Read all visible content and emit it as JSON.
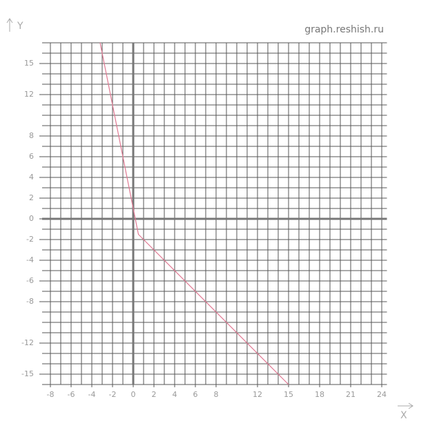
{
  "chart_data": {
    "type": "line",
    "watermark": "graph.reshish.ru",
    "xlabel": "X",
    "ylabel": "Y",
    "x": [
      -3.2,
      0.5,
      15
    ],
    "series": [
      {
        "color": "#e07892",
        "values": [
          17,
          -1.5,
          -16
        ]
      }
    ],
    "xlim": [
      -8.8,
      24.5
    ],
    "ylim": [
      -16,
      17
    ],
    "xticks": [
      -8,
      -6,
      -4,
      -2,
      0,
      2,
      4,
      6,
      8,
      12,
      15,
      18,
      21,
      24
    ],
    "yticks": [
      15,
      12,
      8,
      6,
      4,
      2,
      0,
      -2,
      -4,
      -6,
      -8,
      -12,
      -15
    ],
    "grid": true
  }
}
